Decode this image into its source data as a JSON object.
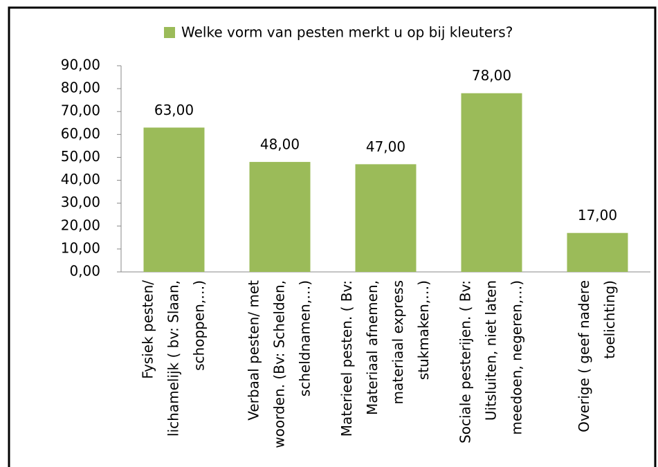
{
  "chart_data": {
    "type": "bar",
    "categories": [
      "Fysiek pesten/\nlichamelijk ( bv: Slaan,\nschoppen,…)",
      "Verbaal pesten/ met\nwoorden. (Bv: Schelden,\nscheldnamen,…)",
      "Materieel pesten. ( Bv:\nMateriaal afnemen,\nmateriaal express\nstukmaken,…)",
      "Sociale pesterijen. ( Bv:\nUitsluiten, niet laten\nmeedoen, negeren,…)",
      "Overige ( geef nadere\ntoelichting)"
    ],
    "series": [
      {
        "name": "Welke vorm van pesten merkt u op bij kleuters?",
        "color": "#9bbb59",
        "values": [
          63,
          48,
          47,
          78,
          17
        ],
        "value_labels": [
          "63,00",
          "48,00",
          "47,00",
          "78,00",
          "17,00"
        ]
      }
    ],
    "ylim": [
      0,
      90
    ],
    "yticks": [
      {
        "value": 0,
        "label": "0,00"
      },
      {
        "value": 10,
        "label": "10,00"
      },
      {
        "value": 20,
        "label": "20,00"
      },
      {
        "value": 30,
        "label": "30,00"
      },
      {
        "value": 40,
        "label": "40,00"
      },
      {
        "value": 50,
        "label": "50,00"
      },
      {
        "value": 60,
        "label": "60,00"
      },
      {
        "value": 70,
        "label": "70,00"
      },
      {
        "value": 80,
        "label": "80,00"
      },
      {
        "value": 90,
        "label": "90,00"
      }
    ],
    "legend": "top",
    "grid": false
  }
}
